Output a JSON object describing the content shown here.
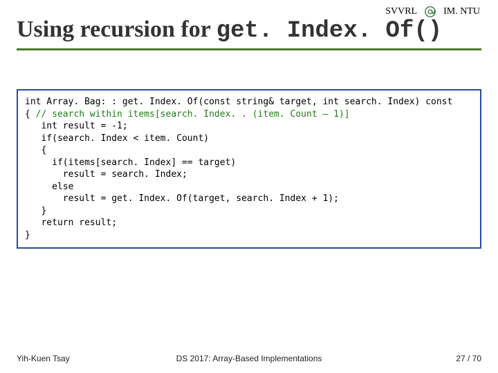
{
  "header": {
    "left": "SVVRL",
    "right": "IM. NTU",
    "icon_stroke": "#2a6a2a",
    "border_color": "#4a7a2a"
  },
  "title": {
    "prefix": "Using recursion for ",
    "mono": "get. Index. Of()",
    "font_size": 34
  },
  "code_box": {
    "border_color": "#2a4aa0",
    "font_size": 13,
    "lines": [
      {
        "text": "int Array. Bag: : get. Index. Of(const string& target, int search. Index) const"
      },
      {
        "text": "{ ",
        "comment": "// search within items[search. Index. . (item. Count – 1)]"
      },
      {
        "text": "   int result = -1;"
      },
      {
        "text": "   if(search. Index < item. Count)"
      },
      {
        "text": "   {"
      },
      {
        "text": "     if(items[search. Index] == target)"
      },
      {
        "text": "       result = search. Index;"
      },
      {
        "text": "     else"
      },
      {
        "text": "       result = get. Index. Of(target, search. Index + 1);"
      },
      {
        "text": "   }"
      },
      {
        "text": "   return result;"
      },
      {
        "text": "}"
      }
    ]
  },
  "footer": {
    "left": "Yih-Kuen Tsay",
    "center": "DS 2017: Array-Based Implementations",
    "right": "27 / 70"
  }
}
